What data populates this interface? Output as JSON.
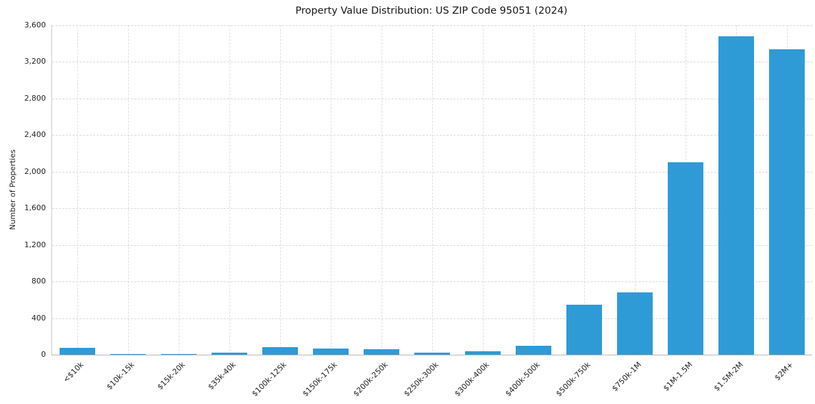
{
  "chart_data": {
    "type": "bar",
    "title": "Property Value Distribution: US ZIP Code 95051 (2024)",
    "xlabel": "",
    "ylabel": "Number of Properties",
    "categories": [
      "<$10k",
      "$10k-15k",
      "$15k-20k",
      "$35k-40k",
      "$100k-125k",
      "$150k-175k",
      "$200k-250k",
      "$250k-300k",
      "$300k-400k",
      "$400k-500k",
      "$500k-750k",
      "$750k-1M",
      "$1M-1.5M",
      "$1.5M-2M",
      "$2M+"
    ],
    "values": [
      75,
      10,
      10,
      25,
      85,
      70,
      62,
      22,
      38,
      95,
      545,
      680,
      2100,
      3480,
      3340
    ],
    "ylim": [
      0,
      3600
    ],
    "yticks": [
      0,
      400,
      800,
      1200,
      1600,
      2000,
      2400,
      2800,
      3200,
      3600
    ],
    "ytick_labels": [
      "0",
      "400",
      "800",
      "1,200",
      "1,600",
      "2,000",
      "2,400",
      "2,800",
      "3,200",
      "3,600"
    ],
    "bar_color": "#2e9bd6",
    "grid": true,
    "grid_style": "dashed",
    "legend_position": "none",
    "background": "#ffffff"
  }
}
